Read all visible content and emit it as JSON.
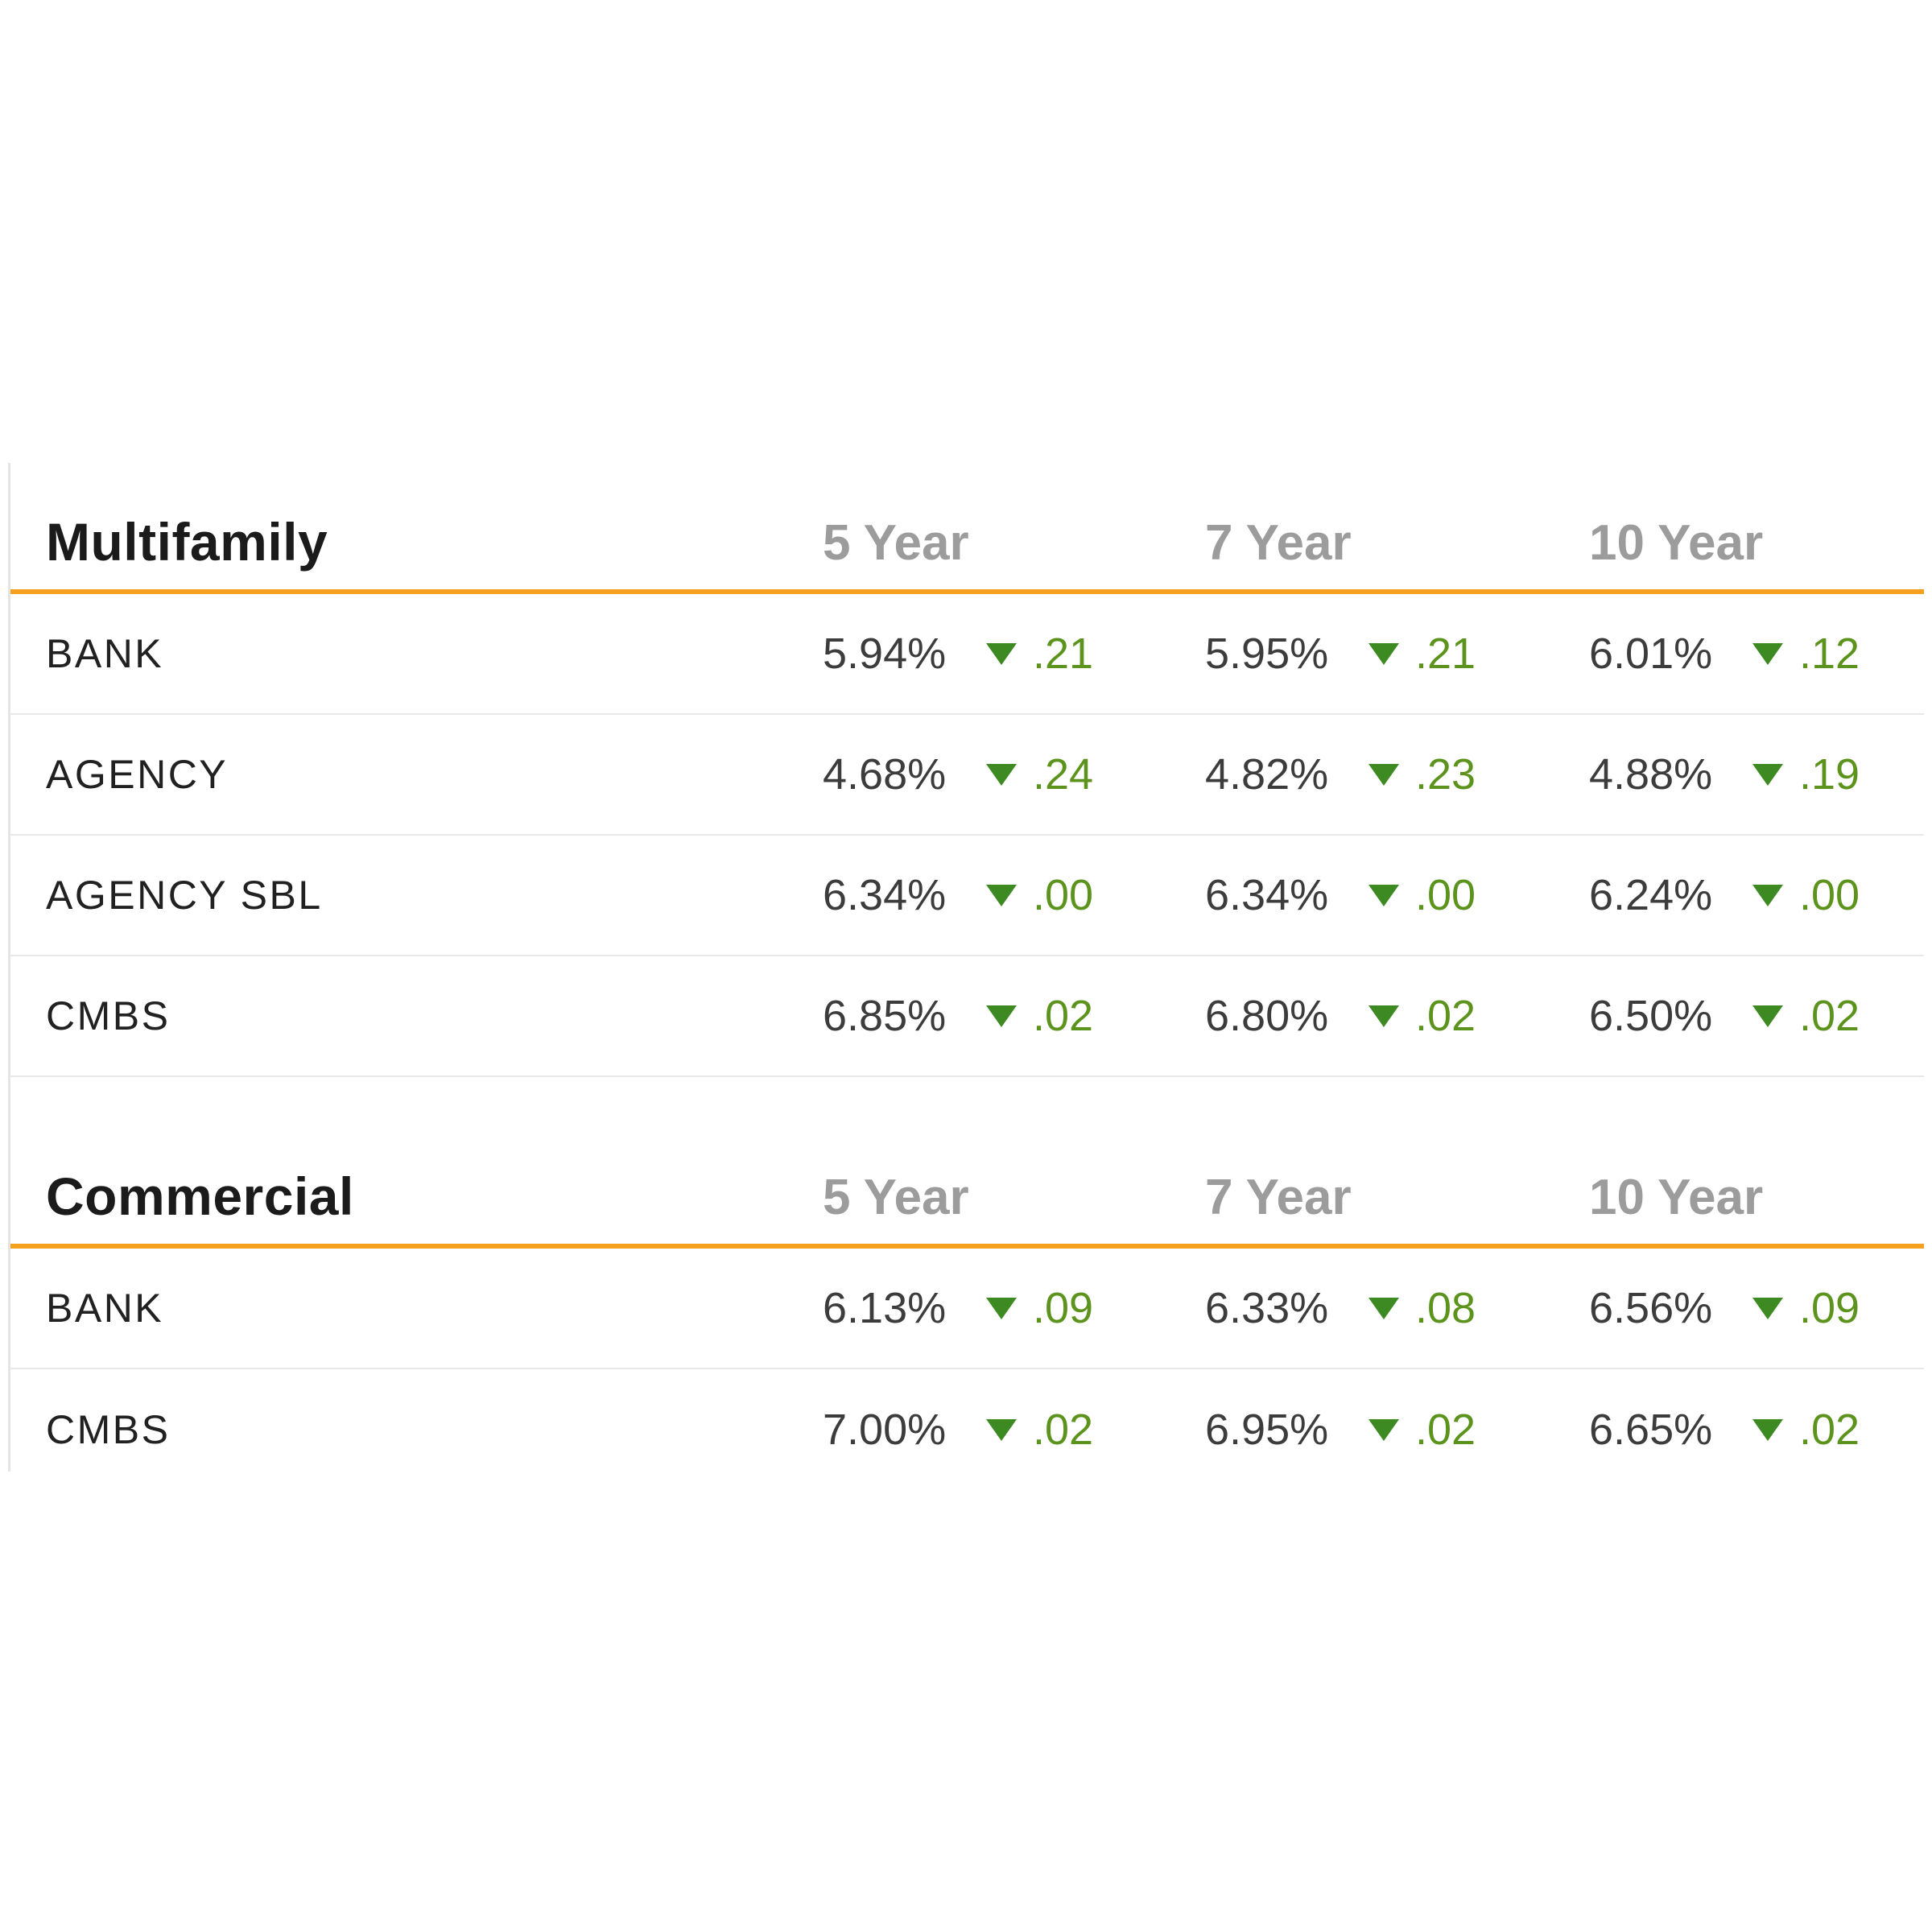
{
  "colors": {
    "accent_orange": "#F5A01E",
    "rate_text": "#3C3C3C",
    "change_green": "#5C931D",
    "triangle_green": "#3E8A22",
    "column_header_gray": "#9C9C9C",
    "row_divider_gray": "#E8E8E8",
    "left_edge_gray": "#E4E4E4"
  },
  "chart_data": [
    {
      "type": "table",
      "title": "Multifamily",
      "columns": [
        "5 Year",
        "7 Year",
        "10 Year"
      ],
      "rows": [
        {
          "label": "BANK",
          "cells": [
            {
              "rate": "5.94%",
              "change": ".21",
              "direction": "down"
            },
            {
              "rate": "5.95%",
              "change": ".21",
              "direction": "down"
            },
            {
              "rate": "6.01%",
              "change": ".12",
              "direction": "down"
            }
          ]
        },
        {
          "label": "AGENCY",
          "cells": [
            {
              "rate": "4.68%",
              "change": ".24",
              "direction": "down"
            },
            {
              "rate": "4.82%",
              "change": ".23",
              "direction": "down"
            },
            {
              "rate": "4.88%",
              "change": ".19",
              "direction": "down"
            }
          ]
        },
        {
          "label": "AGENCY SBL",
          "cells": [
            {
              "rate": "6.34%",
              "change": ".00",
              "direction": "down"
            },
            {
              "rate": "6.34%",
              "change": ".00",
              "direction": "down"
            },
            {
              "rate": "6.24%",
              "change": ".00",
              "direction": "down"
            }
          ]
        },
        {
          "label": "CMBS",
          "cells": [
            {
              "rate": "6.85%",
              "change": ".02",
              "direction": "down"
            },
            {
              "rate": "6.80%",
              "change": ".02",
              "direction": "down"
            },
            {
              "rate": "6.50%",
              "change": ".02",
              "direction": "down"
            }
          ]
        }
      ]
    },
    {
      "type": "table",
      "title": "Commercial",
      "columns": [
        "5 Year",
        "7 Year",
        "10 Year"
      ],
      "rows": [
        {
          "label": "BANK",
          "cells": [
            {
              "rate": "6.13%",
              "change": ".09",
              "direction": "down"
            },
            {
              "rate": "6.33%",
              "change": ".08",
              "direction": "down"
            },
            {
              "rate": "6.56%",
              "change": ".09",
              "direction": "down"
            }
          ]
        },
        {
          "label": "CMBS",
          "cells": [
            {
              "rate": "7.00%",
              "change": ".02",
              "direction": "down"
            },
            {
              "rate": "6.95%",
              "change": ".02",
              "direction": "down"
            },
            {
              "rate": "6.65%",
              "change": ".02",
              "direction": "down"
            }
          ]
        }
      ]
    }
  ]
}
